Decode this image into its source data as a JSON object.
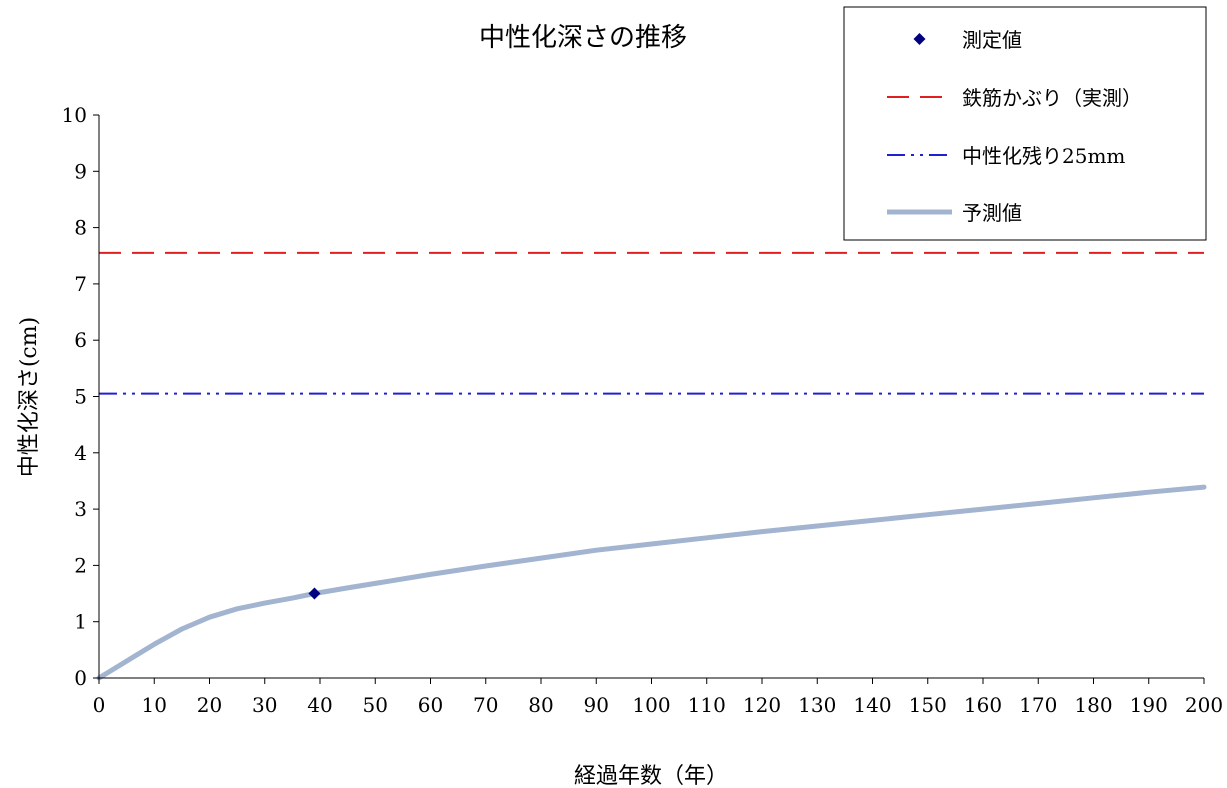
{
  "chart_data": {
    "type": "line",
    "title": "中性化深さの推移",
    "xlabel": "経過年数（年）",
    "ylabel": "中性化深さ(cm)",
    "xlim": [
      0,
      200
    ],
    "ylim": [
      0,
      10
    ],
    "x_ticks": [
      0,
      10,
      20,
      30,
      40,
      50,
      60,
      70,
      80,
      90,
      100,
      110,
      120,
      130,
      140,
      150,
      160,
      170,
      180,
      190,
      200
    ],
    "y_ticks": [
      0,
      1,
      2,
      3,
      4,
      5,
      6,
      7,
      8,
      9,
      10
    ],
    "grid": false,
    "legend_position": "top-right",
    "series": [
      {
        "name": "測定値",
        "kind": "scatter",
        "marker": "diamond",
        "color": "#000080",
        "points": [
          [
            39,
            1.5
          ]
        ]
      },
      {
        "name": "鉄筋かぶり（実測）",
        "kind": "hline",
        "dash": "dashed",
        "color": "#e02020",
        "y": 7.55
      },
      {
        "name": "中性化残り25mm",
        "kind": "hline",
        "dash": "dash-dot-dot",
        "color": "#2020d0",
        "y": 5.05
      },
      {
        "name": "予測値",
        "kind": "line",
        "color": "#a2b4d0",
        "points": [
          [
            0,
            0
          ],
          [
            5,
            0.3
          ],
          [
            10,
            0.6
          ],
          [
            15,
            0.87
          ],
          [
            20,
            1.08
          ],
          [
            25,
            1.23
          ],
          [
            30,
            1.33
          ],
          [
            35,
            1.42
          ],
          [
            39,
            1.5
          ],
          [
            45,
            1.6
          ],
          [
            50,
            1.68
          ],
          [
            60,
            1.84
          ],
          [
            70,
            1.99
          ],
          [
            80,
            2.13
          ],
          [
            90,
            2.27
          ],
          [
            100,
            2.38
          ],
          [
            110,
            2.49
          ],
          [
            120,
            2.6
          ],
          [
            130,
            2.7
          ],
          [
            140,
            2.8
          ],
          [
            150,
            2.9
          ],
          [
            160,
            3.0
          ],
          [
            170,
            3.1
          ],
          [
            180,
            3.2
          ],
          [
            190,
            3.3
          ],
          [
            200,
            3.39
          ]
        ]
      }
    ]
  }
}
